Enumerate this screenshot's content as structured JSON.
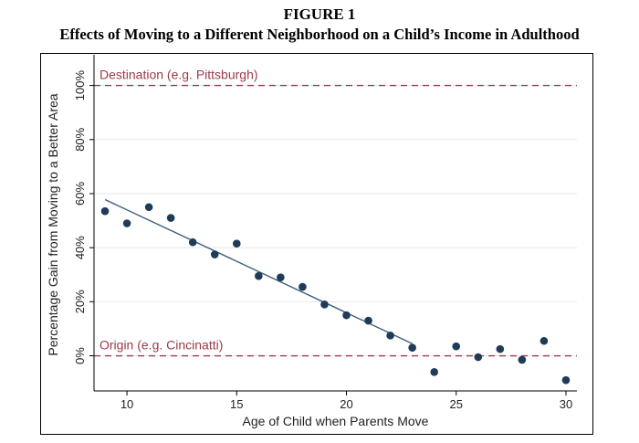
{
  "figure": {
    "label": "FIGURE 1",
    "title": "Effects of Moving to a Different Neighborhood on a Child’s Income in Adulthood"
  },
  "colors": {
    "marker": "#1f3b57",
    "fit_line": "#3d5f80",
    "reference": "#9b3a4d",
    "grid": "#e8e8e8"
  },
  "chart_data": {
    "type": "scatter",
    "xlabel": "Age of Child when Parents Move",
    "ylabel": "Percentage Gain from Moving to a Better Area",
    "xlim": [
      8.5,
      30.5
    ],
    "ylim": [
      -13,
      110
    ],
    "x_ticks": [
      10,
      15,
      20,
      25,
      30
    ],
    "y_ticks": [
      0,
      20,
      40,
      60,
      80,
      100
    ],
    "y_tick_labels": [
      "0%",
      "20%",
      "40%",
      "60%",
      "80%",
      "100%"
    ],
    "grid": "horizontal",
    "series": [
      {
        "x": [
          9,
          10,
          11,
          12,
          13,
          14,
          15,
          16,
          17,
          18,
          19,
          20,
          21,
          22,
          23,
          24,
          25,
          26,
          27,
          28,
          29,
          30
        ],
        "y": [
          53.5,
          49,
          55,
          51,
          42,
          37.5,
          41.5,
          29.5,
          29,
          25.5,
          19,
          15,
          13,
          7.5,
          3,
          -6,
          3.5,
          -0.5,
          2.5,
          -1.5,
          5.5,
          -9
        ]
      }
    ],
    "fit_line": {
      "x": [
        9,
        23
      ],
      "y": [
        57.8,
        4.5
      ]
    },
    "reference_lines": [
      {
        "y": 100,
        "label": "Destination (e.g. Pittsburgh)"
      },
      {
        "y": 0,
        "label": "Origin (e.g. Cincinatti)"
      }
    ]
  }
}
